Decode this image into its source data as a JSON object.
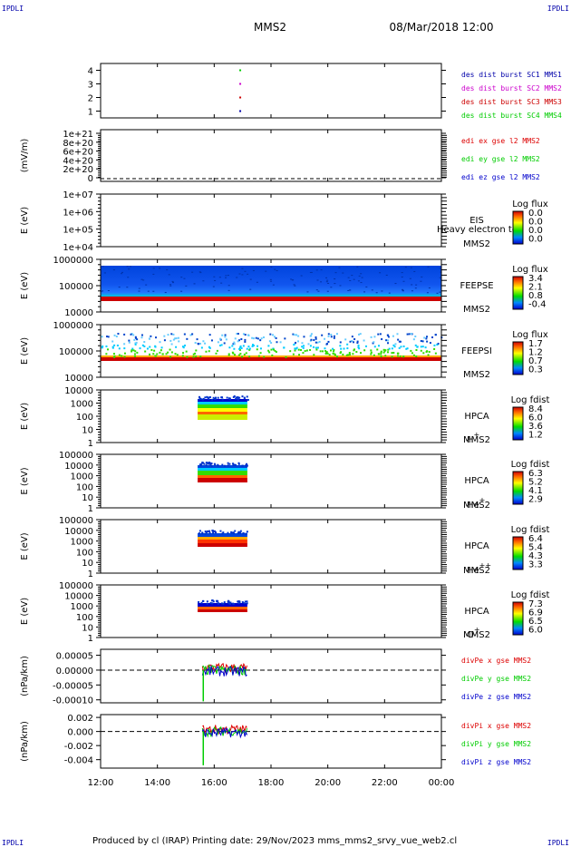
{
  "corner_labels": [
    "IPDLI",
    "IPDLI",
    "IPDLI",
    "IPDLI"
  ],
  "header": {
    "mission": "MMS2",
    "datetime": "08/Mar/2018 12:00"
  },
  "footer": {
    "text": "Produced by cl (IRAP)   Printing date: 29/Nov/2023   mms_mms2_srvy_vue_web2.cl"
  },
  "colors": {
    "mms1": "#0000aa",
    "mms2": "#cc00cc",
    "mms3": "#cc0000",
    "mms4": "#00cc00",
    "x": "#dd0000",
    "y": "#00cc00",
    "z": "#0000cc"
  },
  "chart_data": {
    "type": "multi-panel",
    "x_ticks": [
      "12:00",
      "14:00",
      "16:00",
      "18:00",
      "20:00",
      "22:00",
      "00:00"
    ],
    "xlim": [
      "12:00",
      "00:00"
    ],
    "panels": [
      {
        "id": "des-dist-burst",
        "type": "scatter",
        "yticks": [
          "1",
          "2",
          "3",
          "4"
        ],
        "ylim": [
          0.5,
          4.5
        ],
        "legend": [
          "des dist burst SC1 MMS1",
          "des dist burst SC2 MMS2",
          "des dist burst SC3 MMS3",
          "des dist burst SC4 MMS4"
        ],
        "points": [
          {
            "x": "16:55",
            "y": 4,
            "sc": "mms4"
          },
          {
            "x": "16:55",
            "y": 3,
            "sc": "mms2"
          },
          {
            "x": "16:55",
            "y": 2,
            "sc": "mms3"
          },
          {
            "x": "16:55",
            "y": 1,
            "sc": "mms1"
          }
        ]
      },
      {
        "id": "edi-e-gse",
        "type": "line",
        "ylabel": "(mV/m)",
        "yticks": [
          "1e+21",
          "8e+20",
          "6e+20",
          "4e+20",
          "2e+20",
          "0"
        ],
        "legend": [
          "edi ex gse l2 MMS2",
          "edi ey gse l2 MMS2",
          "edi ez gse l2 MMS2"
        ]
      },
      {
        "id": "eis",
        "type": "heatmap",
        "ylabel": "E (eV)",
        "yticks": [
          "1e+07",
          "1e+06",
          "1e+05",
          "1e+04"
        ],
        "instrument": [
          "EIS",
          "MMS2"
        ],
        "overlay": "Heavy electron to",
        "colorbar": {
          "title": "Log flux",
          "ticks": [
            "0.0",
            "0.0",
            "0.0",
            "0.0"
          ]
        }
      },
      {
        "id": "feepse",
        "type": "heatmap",
        "ylabel": "E (eV)",
        "yticks": [
          "1000000",
          "100000",
          "10000"
        ],
        "instrument": [
          "FEEPSE",
          "MMS2"
        ],
        "colorbar": {
          "title": "Log flux",
          "ticks": [
            "3.4",
            "2.1",
            "0.8",
            "-0.4"
          ]
        },
        "coverage": [
          "12:00",
          "00:00"
        ]
      },
      {
        "id": "feepsi",
        "type": "heatmap",
        "ylabel": "E (eV)",
        "yticks": [
          "1000000",
          "100000",
          "10000"
        ],
        "instrument": [
          "FEEPSI",
          "MMS2"
        ],
        "colorbar": {
          "title": "Log flux",
          "ticks": [
            "1.7",
            "1.2",
            "0.7",
            "0.3"
          ]
        },
        "coverage": [
          "12:00",
          "00:00"
        ]
      },
      {
        "id": "hpca-h",
        "type": "heatmap",
        "ylabel": "E (eV)",
        "yticks": [
          "10000",
          "1000",
          "100",
          "10",
          "1"
        ],
        "instrument": [
          "HPCA",
          "MMS2"
        ],
        "species": "H",
        "charge": "+",
        "colorbar": {
          "title": "Log fdist",
          "ticks": [
            "8.4",
            "6.0",
            "3.6",
            "1.2"
          ]
        },
        "coverage": [
          "15:25",
          "17:10"
        ]
      },
      {
        "id": "hpca-he",
        "type": "heatmap",
        "ylabel": "E (eV)",
        "yticks": [
          "100000",
          "10000",
          "1000",
          "100",
          "10",
          "1"
        ],
        "instrument": [
          "HPCA",
          "MMS2"
        ],
        "species": "He",
        "charge": "+",
        "colorbar": {
          "title": "Log fdist",
          "ticks": [
            "6.3",
            "5.2",
            "4.1",
            "2.9"
          ]
        },
        "coverage": [
          "15:25",
          "17:10"
        ]
      },
      {
        "id": "hpca-he2",
        "type": "heatmap",
        "ylabel": "E (eV)",
        "yticks": [
          "100000",
          "10000",
          "1000",
          "100",
          "10",
          "1"
        ],
        "instrument": [
          "HPCA",
          "MMS2"
        ],
        "species": "He",
        "charge": "++",
        "colorbar": {
          "title": "Log fdist",
          "ticks": [
            "6.4",
            "5.4",
            "4.3",
            "3.3"
          ]
        },
        "coverage": [
          "15:25",
          "17:10"
        ]
      },
      {
        "id": "hpca-o",
        "type": "heatmap",
        "ylabel": "E (eV)",
        "yticks": [
          "100000",
          "10000",
          "1000",
          "100",
          "10",
          "1"
        ],
        "instrument": [
          "HPCA",
          "MMS2"
        ],
        "species": "O",
        "charge": "+",
        "colorbar": {
          "title": "Log fdist",
          "ticks": [
            "7.3",
            "6.9",
            "6.5",
            "6.0"
          ]
        },
        "coverage": [
          "15:25",
          "17:10"
        ]
      },
      {
        "id": "divpe",
        "type": "line",
        "ylabel": "(nPa/km)",
        "yticks": [
          "0.00005",
          "0.00000",
          "-0.00005",
          "-0.00010"
        ],
        "ylim": [
          -0.00011,
          7e-05
        ],
        "legend": [
          "divPe x gse MMS2",
          "divPe y gse MMS2",
          "divPe z gse MMS2"
        ],
        "coverage": [
          "15:35",
          "17:10"
        ]
      },
      {
        "id": "divpi",
        "type": "line",
        "ylabel": "(nPa/km)",
        "yticks": [
          "0.002",
          "0.000",
          "-0.002",
          "-0.004"
        ],
        "ylim": [
          -0.0052,
          0.0024
        ],
        "legend": [
          "divPi x gse MMS2",
          "divPi y gse MMS2",
          "divPi z gse MMS2"
        ],
        "coverage": [
          "15:35",
          "17:10"
        ]
      }
    ]
  }
}
